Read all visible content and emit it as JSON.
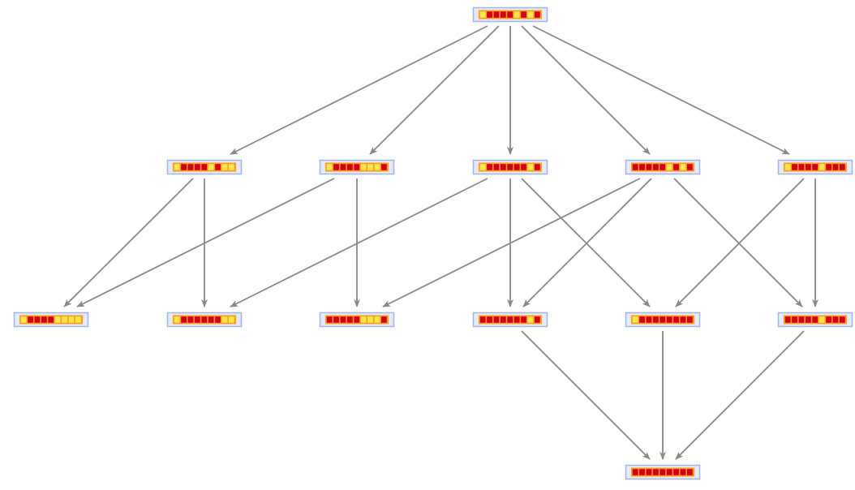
{
  "colors": {
    "on_cell": "#ffe74a",
    "off_cell": "#d4001a",
    "strip": "#ff9a1f",
    "node_fill": "#e4eaf8",
    "node_border": "#a3b5e3",
    "edge": "#888888"
  },
  "nodes": [
    {
      "id": "n0",
      "cells": [
        1,
        0,
        0,
        0,
        0,
        1,
        0,
        1,
        0
      ]
    },
    {
      "id": "n1",
      "cells": [
        1,
        0,
        0,
        0,
        0,
        1,
        0,
        1,
        1
      ]
    },
    {
      "id": "n2",
      "cells": [
        1,
        0,
        0,
        0,
        0,
        1,
        1,
        1,
        0
      ]
    },
    {
      "id": "n3",
      "cells": [
        1,
        0,
        0,
        0,
        0,
        0,
        0,
        1,
        0
      ]
    },
    {
      "id": "n4",
      "cells": [
        0,
        0,
        0,
        0,
        0,
        1,
        0,
        1,
        0
      ]
    },
    {
      "id": "n5",
      "cells": [
        1,
        0,
        0,
        0,
        0,
        1,
        0,
        0,
        0
      ]
    },
    {
      "id": "n6",
      "cells": [
        1,
        0,
        0,
        0,
        0,
        1,
        1,
        1,
        1
      ]
    },
    {
      "id": "n7",
      "cells": [
        1,
        0,
        0,
        0,
        0,
        0,
        0,
        1,
        1
      ]
    },
    {
      "id": "n8",
      "cells": [
        0,
        0,
        0,
        0,
        0,
        1,
        1,
        1,
        0
      ]
    },
    {
      "id": "n9",
      "cells": [
        0,
        0,
        0,
        0,
        0,
        0,
        0,
        1,
        0
      ]
    },
    {
      "id": "n10",
      "cells": [
        1,
        0,
        0,
        0,
        0,
        0,
        0,
        0,
        0
      ]
    },
    {
      "id": "n11",
      "cells": [
        0,
        0,
        0,
        0,
        0,
        1,
        0,
        0,
        0
      ]
    },
    {
      "id": "n12",
      "cells": [
        0,
        0,
        0,
        0,
        0,
        0,
        0,
        0,
        0
      ]
    }
  ],
  "edges": [
    [
      "n0",
      "n1"
    ],
    [
      "n0",
      "n2"
    ],
    [
      "n0",
      "n3"
    ],
    [
      "n0",
      "n4"
    ],
    [
      "n0",
      "n5"
    ],
    [
      "n1",
      "n6"
    ],
    [
      "n1",
      "n7"
    ],
    [
      "n2",
      "n6"
    ],
    [
      "n2",
      "n8"
    ],
    [
      "n3",
      "n7"
    ],
    [
      "n3",
      "n9"
    ],
    [
      "n3",
      "n10"
    ],
    [
      "n4",
      "n8"
    ],
    [
      "n4",
      "n9"
    ],
    [
      "n4",
      "n11"
    ],
    [
      "n5",
      "n10"
    ],
    [
      "n5",
      "n11"
    ],
    [
      "n9",
      "n12"
    ],
    [
      "n10",
      "n12"
    ],
    [
      "n11",
      "n12"
    ]
  ]
}
